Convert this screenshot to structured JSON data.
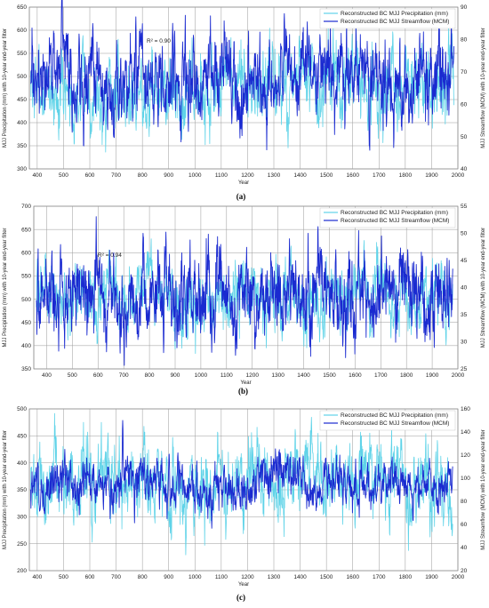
{
  "chart_data": [
    {
      "type": "line",
      "panel_label": "(a)",
      "xlabel": "Year",
      "ylabel_left": "MJJ Precipitation (mm) with 10-year end-year filter",
      "ylabel_right": "MJJ Streamflow (MCM) with 10-year end-year filter",
      "xlim": [
        370,
        2000
      ],
      "x_ticks": [
        400,
        500,
        600,
        700,
        800,
        900,
        1000,
        1100,
        1200,
        1300,
        1400,
        1500,
        1600,
        1700,
        1800,
        1900,
        2000
      ],
      "ylim_left": [
        300,
        650
      ],
      "y_ticks_left": [
        300,
        350,
        400,
        450,
        500,
        550,
        600,
        650
      ],
      "ylim_right": [
        40,
        90
      ],
      "y_ticks_right": [
        40,
        50,
        60,
        70,
        80,
        90
      ],
      "annotation": "R² = 0.90",
      "legend_placement": "top-right",
      "grid": true,
      "series": [
        {
          "name": "Reconstructed BC MJJ Precipitation (mm)",
          "color": "#5fd3e8",
          "axis": "left",
          "mean": 475,
          "sd": 45,
          "x_start": 375,
          "x_end": 1985
        },
        {
          "name": "Reconstructed BC MJJ Streamflow (MCM)",
          "color": "#1a2ad0",
          "axis": "right",
          "mean": 68,
          "sd": 7,
          "x_start": 375,
          "x_end": 1985,
          "peaks": [
            [
              775,
              87
            ],
            [
              915,
              85
            ],
            [
              1340,
              88
            ],
            [
              1975,
              86
            ]
          ],
          "troughs": [
            [
              710,
              55
            ],
            [
              860,
              53
            ],
            [
              1140,
              54
            ]
          ]
        }
      ]
    },
    {
      "type": "line",
      "panel_label": "(b)",
      "xlabel": "Year",
      "ylabel_left": "MJJ Precipitation (mm) with 10-year end-year filter",
      "ylabel_right": "MJJ Streamflow (MCM) with 10-year end-year filter",
      "xlim": [
        350,
        2000
      ],
      "x_ticks": [
        400,
        500,
        600,
        700,
        800,
        900,
        1000,
        1100,
        1200,
        1300,
        1400,
        1500,
        1600,
        1700,
        1800,
        1900,
        2000
      ],
      "ylim_left": [
        350,
        700
      ],
      "y_ticks_left": [
        350,
        400,
        450,
        500,
        550,
        600,
        650,
        700
      ],
      "ylim_right": [
        25,
        55
      ],
      "y_ticks_right": [
        25,
        30,
        35,
        40,
        45,
        50,
        55
      ],
      "annotation": "R² = 0.94",
      "legend_placement": "top-right",
      "grid": true,
      "series": [
        {
          "name": "Reconstructed BC MJJ Precipitation (mm)",
          "color": "#5fd3e8",
          "axis": "left",
          "mean": 505,
          "sd": 40,
          "x_start": 360,
          "x_end": 1980
        },
        {
          "name": "Reconstructed BC MJJ Streamflow (MCM)",
          "color": "#1a2ad0",
          "axis": "right",
          "mean": 38.5,
          "sd": 4,
          "x_start": 360,
          "x_end": 1980,
          "peaks": [
            [
              775,
              50
            ],
            [
              1345,
              49
            ],
            [
              1525,
              47
            ],
            [
              1805,
              47
            ]
          ],
          "troughs": [
            [
              710,
              29
            ],
            [
              855,
              28
            ],
            [
              1135,
              27.5
            ]
          ]
        }
      ]
    },
    {
      "type": "line",
      "panel_label": "(c)",
      "xlabel": "Year",
      "ylabel_left": "MJJ Precipitation (mm) with 10-year end-year filter",
      "ylabel_right": "MJJ Streamflow (MCM) with 10-year end-year filter",
      "xlim": [
        370,
        2000
      ],
      "x_ticks": [
        400,
        500,
        600,
        700,
        800,
        900,
        1000,
        1100,
        1200,
        1300,
        1400,
        1500,
        1600,
        1700,
        1800,
        1900,
        2000
      ],
      "ylim_left": [
        200,
        500
      ],
      "y_ticks_left": [
        200,
        250,
        300,
        350,
        400,
        450,
        500
      ],
      "ylim_right": [
        20,
        160
      ],
      "y_ticks_right": [
        20,
        40,
        60,
        80,
        100,
        120,
        140,
        160
      ],
      "annotation": "",
      "legend_placement": "top-right",
      "grid": true,
      "series": [
        {
          "name": "Reconstructed BC MJJ Precipitation (mm)",
          "color": "#5fd3e8",
          "axis": "left",
          "mean": 365,
          "sd": 40,
          "x_start": 375,
          "x_end": 1980
        },
        {
          "name": "Reconstructed BC MJJ Streamflow (MCM)",
          "color": "#1a2ad0",
          "axis": "right",
          "mean": 95,
          "sd": 11,
          "x_start": 375,
          "x_end": 1980,
          "peaks": [
            [
              725,
              150
            ],
            [
              505,
              125
            ],
            [
              935,
              122
            ]
          ],
          "troughs": [
            [
              1575,
              78
            ],
            [
              410,
              72
            ],
            [
              1690,
              80
            ]
          ]
        }
      ]
    }
  ]
}
